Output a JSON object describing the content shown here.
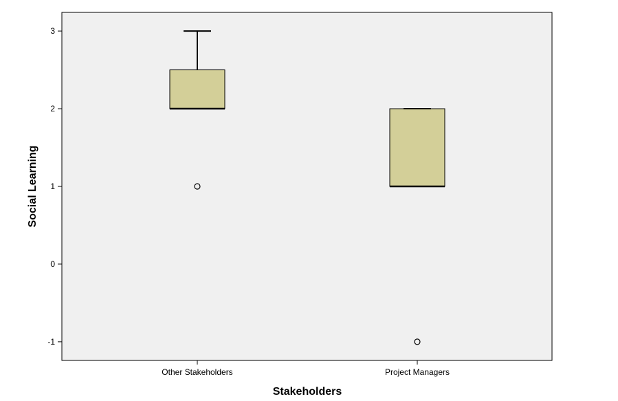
{
  "chart_data": {
    "type": "box",
    "xlabel": "Stakeholders",
    "ylabel": "Social Learning",
    "ylim": [
      -1.24,
      3.24
    ],
    "yticks": [
      3,
      2,
      1,
      0,
      -1
    ],
    "ytick_labels": [
      "3",
      "2",
      "1",
      "0",
      "-1"
    ],
    "grid": false,
    "colors": {
      "box_fill": "#d3cf98",
      "plot_bg": "#f0f0f0",
      "line": "#000000"
    },
    "categories": [
      "Other Stakeholders",
      "Project Managers"
    ],
    "boxes": [
      {
        "category": "Other Stakeholders",
        "whisker_low": 2,
        "q1": 2,
        "median": 2,
        "q3": 2.5,
        "whisker_high": 3,
        "outliers": [
          1
        ]
      },
      {
        "category": "Project Managers",
        "whisker_low": 1,
        "q1": 1,
        "median": 1,
        "q3": 2,
        "whisker_high": 2,
        "outliers": [
          -1
        ]
      }
    ]
  }
}
